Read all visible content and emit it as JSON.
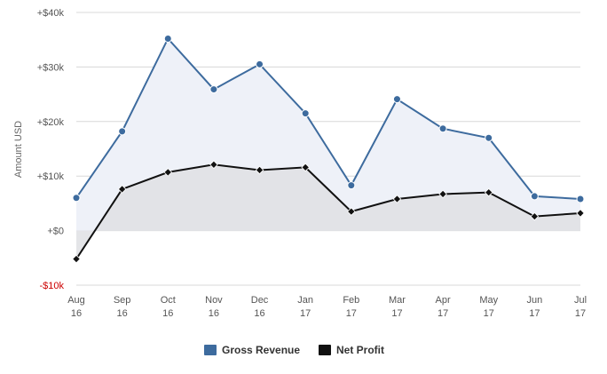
{
  "chart_data": {
    "type": "area",
    "categories": [
      [
        "Aug",
        "16"
      ],
      [
        "Sep",
        "16"
      ],
      [
        "Oct",
        "16"
      ],
      [
        "Nov",
        "16"
      ],
      [
        "Dec",
        "16"
      ],
      [
        "Jan",
        "17"
      ],
      [
        "Feb",
        "17"
      ],
      [
        "Mar",
        "17"
      ],
      [
        "Apr",
        "17"
      ],
      [
        "May",
        "17"
      ],
      [
        "Jun",
        "17"
      ],
      [
        "Jul",
        "17"
      ]
    ],
    "ylabel": "Amount USD",
    "ylim": [
      -10000,
      40000
    ],
    "yticks": [
      {
        "value": 40000,
        "label": "+$40k"
      },
      {
        "value": 30000,
        "label": "+$30k"
      },
      {
        "value": 20000,
        "label": "+$20k"
      },
      {
        "value": 10000,
        "label": "+$10k"
      },
      {
        "value": 0,
        "label": "+$0"
      },
      {
        "value": -10000,
        "label": "-$10k"
      }
    ],
    "grid": true,
    "legend_position": "bottom-center",
    "series": [
      {
        "name": "Gross Revenue",
        "color": "#3d6b9e",
        "fill": "#eef1f8",
        "marker": "circle",
        "values": [
          6000,
          18200,
          35200,
          25900,
          30500,
          21500,
          8300,
          24100,
          18700,
          17000,
          6300,
          5800
        ]
      },
      {
        "name": "Net Profit",
        "color": "#111111",
        "fill": "#dfe1e4",
        "marker": "diamond",
        "values": [
          -5200,
          7600,
          10700,
          12100,
          11100,
          11600,
          3500,
          5800,
          6700,
          7000,
          2600,
          3200
        ]
      }
    ]
  }
}
